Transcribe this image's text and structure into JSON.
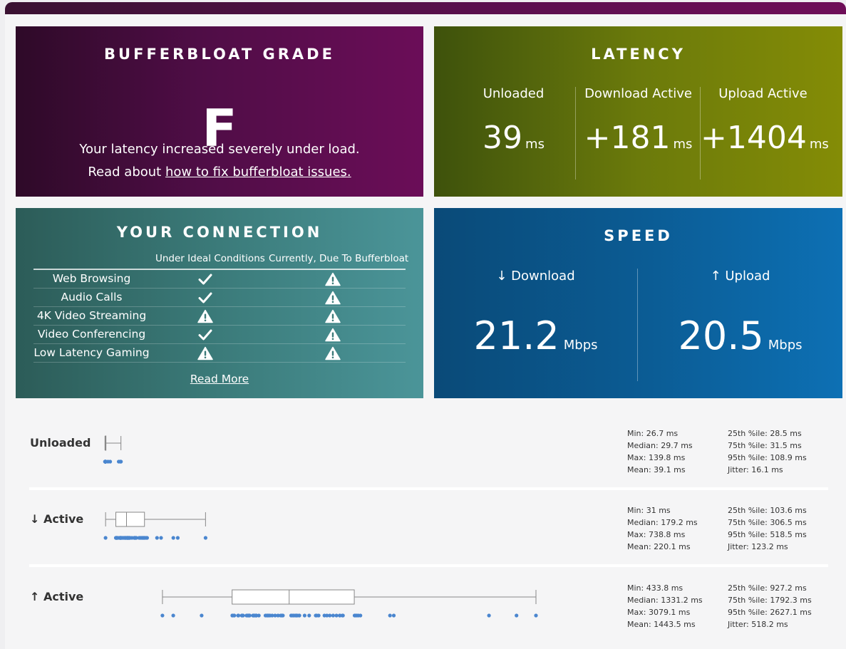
{
  "grade": {
    "title": "BUFFERBLOAT GRADE",
    "letter": "F",
    "description": "Your latency increased severely under load.",
    "read_prefix": "Read about ",
    "link_text": "how to fix bufferbloat issues."
  },
  "latency": {
    "title": "LATENCY",
    "unit": "ms",
    "columns": [
      {
        "label": "Unloaded",
        "value": "39"
      },
      {
        "label": "Download Active",
        "value": "+181"
      },
      {
        "label": "Upload Active",
        "value": "+1404"
      }
    ]
  },
  "connection": {
    "title": "YOUR CONNECTION",
    "col_ideal": "Under Ideal Conditions",
    "col_current": "Currently, Due To Bufferbloat",
    "rows": [
      {
        "name": "Web Browsing",
        "ideal": "check-icon",
        "current": "warning-icon"
      },
      {
        "name": "Audio Calls",
        "ideal": "check-icon",
        "current": "warning-icon"
      },
      {
        "name": "4K Video Streaming",
        "ideal": "warning-icon",
        "current": "warning-icon"
      },
      {
        "name": "Video Conferencing",
        "ideal": "check-icon",
        "current": "warning-icon"
      },
      {
        "name": "Low Latency Gaming",
        "ideal": "warning-icon",
        "current": "warning-icon"
      }
    ],
    "read_more": "Read More"
  },
  "speed": {
    "title": "SPEED",
    "unit": "Mbps",
    "download": {
      "label": "↓ Download",
      "value": "21.2"
    },
    "upload": {
      "label": "↑ Upload",
      "value": "20.5"
    }
  },
  "latency_rows": [
    {
      "label": "Unloaded",
      "stats_left": [
        "Min: 26.7 ms",
        "Median: 29.7 ms",
        "Max: 139.8 ms",
        "Mean: 39.1 ms"
      ],
      "stats_right": [
        "25th %ile: 28.5 ms",
        "75th %ile: 31.5 ms",
        "95th %ile: 108.9 ms",
        "Jitter: 16.1 ms"
      ]
    },
    {
      "label": "↓ Active",
      "stats_left": [
        "Min: 31 ms",
        "Median: 179.2 ms",
        "Max: 738.8 ms",
        "Mean: 220.1 ms"
      ],
      "stats_right": [
        "25th %ile: 103.6 ms",
        "75th %ile: 306.5 ms",
        "95th %ile: 518.5 ms",
        "Jitter: 123.2 ms"
      ]
    },
    {
      "label": "↑ Active",
      "stats_left": [
        "Min: 433.8 ms",
        "Median: 1331.2 ms",
        "Max: 3079.1 ms",
        "Mean: 1443.5 ms"
      ],
      "stats_right": [
        "25th %ile: 927.2 ms",
        "75th %ile: 1792.3 ms",
        "95th %ile: 2627.1 ms",
        "Jitter: 518.2 ms"
      ]
    }
  ],
  "chart_data": {
    "type": "box",
    "unit": "ms",
    "series": [
      {
        "name": "Unloaded",
        "min": 26.7,
        "q1": 28.5,
        "median": 29.7,
        "q3": 31.5,
        "max": 139.8
      },
      {
        "name": "↓ Active",
        "min": 31,
        "q1": 103.6,
        "median": 179.2,
        "q3": 306.5,
        "max": 738.8
      },
      {
        "name": "↑ Active",
        "min": 433.8,
        "q1": 927.2,
        "median": 1331.2,
        "q3": 1792.3,
        "max": 3079.1
      }
    ]
  },
  "colors": {
    "dot": "#4a86cf",
    "box_stroke": "#888888"
  }
}
